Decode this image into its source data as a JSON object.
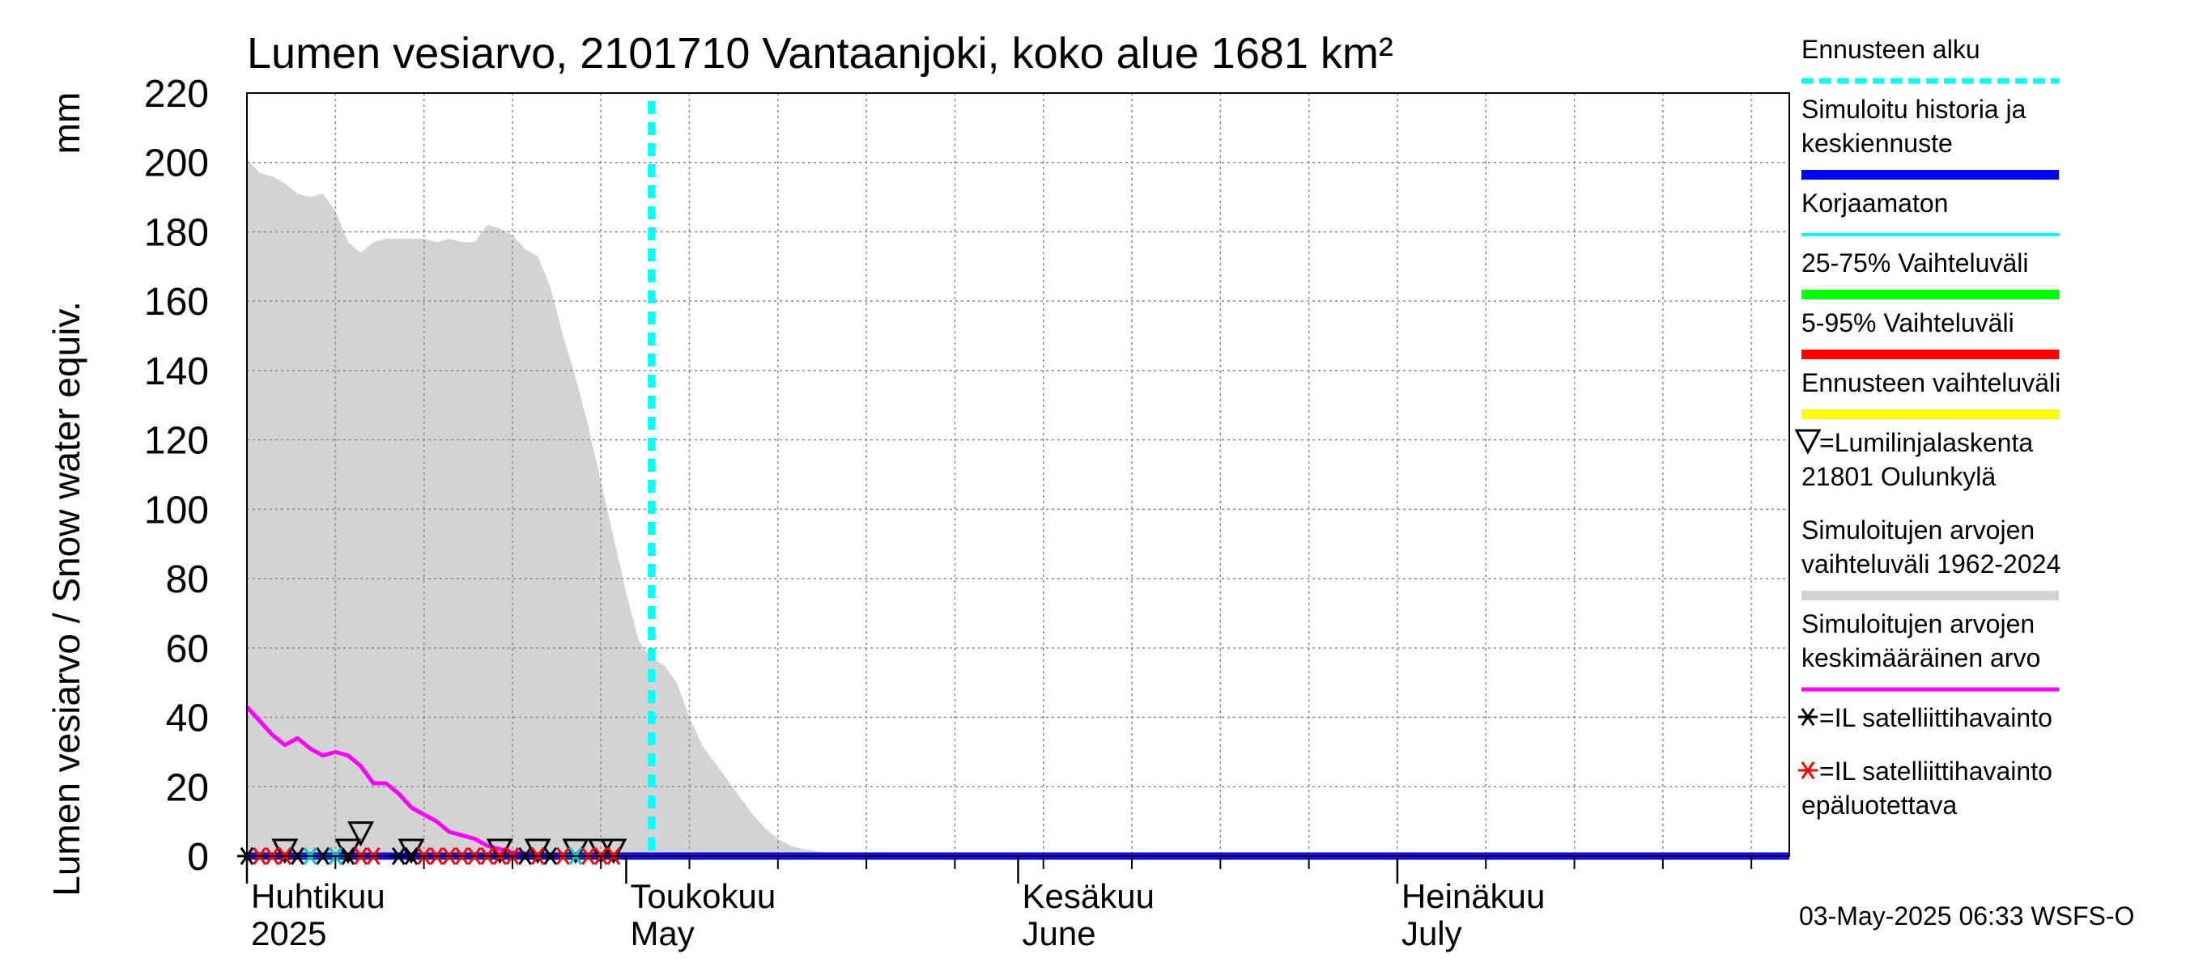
{
  "chart_data": {
    "type": "area",
    "title": "Lumen vesiarvo, 2101710 Vantaanjoki, koko alue 1681 km²",
    "ylabel": "Lumen vesiarvo / Snow water equiv.",
    "yunit": "mm",
    "ylim": [
      0,
      220
    ],
    "yticks": [
      0,
      20,
      40,
      60,
      80,
      100,
      120,
      140,
      160,
      180,
      200,
      220
    ],
    "xlim": [
      "2025-04-01",
      "2025-08-01"
    ],
    "grid": true,
    "legend_position": "right",
    "month_labels": [
      {
        "date": "2025-04-01",
        "line1": "Huhtikuu",
        "line2": "2025"
      },
      {
        "date": "2025-05-01",
        "line1": "Toukokuu",
        "line2": "May"
      },
      {
        "date": "2025-06-01",
        "line1": "Kesäkuu",
        "line2": "June"
      },
      {
        "date": "2025-07-01",
        "line1": "Heinäkuu",
        "line2": "July"
      }
    ],
    "forecast_start": "2025-05-03",
    "series": [
      {
        "name": "Simuloitujen arvojen vaihteluväli 1962-2024",
        "kind": "range",
        "color": "#d3d3d3",
        "x": [
          "2025-04-01",
          "2025-04-02",
          "2025-04-03",
          "2025-04-04",
          "2025-04-05",
          "2025-04-06",
          "2025-04-07",
          "2025-04-08",
          "2025-04-09",
          "2025-04-10",
          "2025-04-11",
          "2025-04-12",
          "2025-04-13",
          "2025-04-14",
          "2025-04-15",
          "2025-04-16",
          "2025-04-17",
          "2025-04-18",
          "2025-04-19",
          "2025-04-20",
          "2025-04-21",
          "2025-04-22",
          "2025-04-23",
          "2025-04-24",
          "2025-04-25",
          "2025-04-26",
          "2025-04-27",
          "2025-04-28",
          "2025-04-29",
          "2025-04-30",
          "2025-05-01",
          "2025-05-02",
          "2025-05-03",
          "2025-05-04",
          "2025-05-05",
          "2025-05-06",
          "2025-05-07",
          "2025-05-08",
          "2025-05-09",
          "2025-05-10",
          "2025-05-11",
          "2025-05-12",
          "2025-05-13",
          "2025-05-14",
          "2025-05-15",
          "2025-05-16",
          "2025-05-17",
          "2025-05-18",
          "2025-05-20",
          "2025-05-22",
          "2025-05-25",
          "2025-06-01",
          "2025-08-01"
        ],
        "upper": [
          201,
          197,
          196,
          194,
          191,
          190,
          191,
          186,
          177,
          174,
          177,
          178,
          178,
          178,
          178,
          177,
          178,
          177,
          177,
          182,
          181,
          179,
          175,
          173,
          164,
          150,
          138,
          124,
          108,
          92,
          76,
          62,
          57,
          55,
          50,
          40,
          32,
          27,
          22,
          17,
          12,
          8,
          5,
          3,
          2,
          1.5,
          1,
          0.5,
          0.3,
          0.2,
          0.1,
          0,
          0
        ],
        "lower": [
          0,
          0,
          0,
          0,
          0,
          0,
          0,
          0,
          0,
          0,
          0,
          0,
          0,
          0,
          0,
          0,
          0,
          0,
          0,
          0,
          0,
          0,
          0,
          0,
          0,
          0,
          0,
          0,
          0,
          0,
          0,
          0,
          0,
          0,
          0,
          0,
          0,
          0,
          0,
          0,
          0,
          0,
          0,
          0,
          0,
          0,
          0,
          0,
          0,
          0,
          0,
          0,
          0
        ]
      },
      {
        "name": "Simuloitujen arvojen keskimääräinen arvo",
        "kind": "line",
        "color": "#ff00ff",
        "x": [
          "2025-04-01",
          "2025-04-02",
          "2025-04-03",
          "2025-04-04",
          "2025-04-05",
          "2025-04-06",
          "2025-04-07",
          "2025-04-08",
          "2025-04-09",
          "2025-04-10",
          "2025-04-11",
          "2025-04-12",
          "2025-04-13",
          "2025-04-14",
          "2025-04-15",
          "2025-04-16",
          "2025-04-17",
          "2025-04-18",
          "2025-04-19",
          "2025-04-20",
          "2025-04-21",
          "2025-04-22",
          "2025-04-23",
          "2025-04-24",
          "2025-04-25",
          "2025-04-26",
          "2025-04-27",
          "2025-05-01",
          "2025-08-01"
        ],
        "y": [
          43,
          39,
          35,
          32,
          34,
          31,
          29,
          30,
          29,
          26,
          21,
          21,
          18,
          14,
          12,
          10,
          7,
          6,
          5,
          3,
          2,
          1,
          0.8,
          0.5,
          0.3,
          0.2,
          0.1,
          0,
          0
        ]
      },
      {
        "name": "Simuloitu historia ja keskiennuste",
        "kind": "line",
        "color": "#0000ff",
        "x": [
          "2025-04-01",
          "2025-08-01"
        ],
        "y": [
          0,
          0
        ]
      }
    ],
    "markers": [
      {
        "name": "=Lumilinjalaskenta 21801 Oulunkylä",
        "symbol": "triangle-down",
        "color": "#000000",
        "x": [
          "2025-04-04",
          "2025-04-09",
          "2025-04-10",
          "2025-04-14",
          "2025-04-21",
          "2025-04-24",
          "2025-04-27",
          "2025-04-29",
          "2025-04-30"
        ],
        "y": [
          0,
          0,
          5,
          0,
          0,
          0,
          0,
          0,
          0
        ]
      },
      {
        "name": "=IL satelliittihavainto",
        "symbol": "asterisk",
        "color": "#000000",
        "x": [
          "2025-04-01",
          "2025-04-05",
          "2025-04-07",
          "2025-04-09",
          "2025-04-13",
          "2025-04-14",
          "2025-04-23",
          "2025-04-25",
          "2025-04-27"
        ],
        "y": [
          0,
          0,
          0,
          0,
          0,
          0,
          0,
          0,
          0
        ]
      },
      {
        "name": "=IL satelliittihavainto epäluotettava",
        "symbol": "asterisk",
        "color": "#ff0000",
        "x": [
          "2025-04-02",
          "2025-04-03",
          "2025-04-04",
          "2025-04-06",
          "2025-04-08",
          "2025-04-10",
          "2025-04-11",
          "2025-04-15",
          "2025-04-16",
          "2025-04-17",
          "2025-04-18",
          "2025-04-19",
          "2025-04-20",
          "2025-04-21",
          "2025-04-22",
          "2025-04-24",
          "2025-04-26",
          "2025-04-28",
          "2025-04-29",
          "2025-04-30"
        ],
        "y": [
          0,
          0,
          0,
          0,
          0,
          0,
          0,
          0,
          0,
          0,
          0,
          0,
          0,
          0,
          0,
          0,
          0,
          0,
          0,
          0
        ]
      },
      {
        "name": "cyan-asterisks",
        "symbol": "asterisk",
        "color": "#00cccc",
        "x": [
          "2025-04-06",
          "2025-04-08",
          "2025-04-27"
        ],
        "y": [
          0,
          0,
          0
        ]
      }
    ],
    "legend": [
      {
        "label_lines": [
          "Ennusteen alku"
        ],
        "style": "dashed",
        "color": "#00ffff"
      },
      {
        "label_lines": [
          "Simuloitu historia ja",
          "keskiennuste"
        ],
        "style": "thick",
        "color": "#0000ff"
      },
      {
        "label_lines": [
          "Korjaamaton"
        ],
        "style": "thin",
        "color": "#00ffff"
      },
      {
        "label_lines": [
          "25-75% Vaihteluväli"
        ],
        "style": "thick",
        "color": "#00ff00"
      },
      {
        "label_lines": [
          "5-95% Vaihteluväli"
        ],
        "style": "thick",
        "color": "#ff0000"
      },
      {
        "label_lines": [
          "Ennusteen vaihteluväli"
        ],
        "style": "thick",
        "color": "#ffff00"
      },
      {
        "label_lines": [
          "=Lumilinjalaskenta",
          "21801 Oulunkylä"
        ],
        "style": "triangle",
        "color": "#000000"
      },
      {
        "label_lines": [
          "Simuloitujen arvojen",
          "vaihteluväli 1962-2024"
        ],
        "style": "thick",
        "color": "#d3d3d3"
      },
      {
        "label_lines": [
          "Simuloitujen arvojen",
          "keskimääräinen arvo"
        ],
        "style": "medium",
        "color": "#ff00ff"
      },
      {
        "label_lines": [
          "=IL satelliittihavainto"
        ],
        "style": "asterisk",
        "color": "#000000"
      },
      {
        "label_lines": [
          "=IL satelliittihavainto",
          "epäluotettava"
        ],
        "style": "asterisk",
        "color": "#ff0000"
      }
    ],
    "footer": "03-May-2025 06:33 WSFS-O"
  }
}
